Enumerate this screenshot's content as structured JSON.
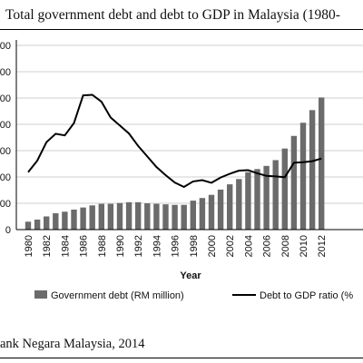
{
  "header": {
    "title": "Total government debt and debt to GDP in Malaysia (1980-"
  },
  "footer": {
    "source": "ank Negara Malaysia, 2014"
  },
  "chart_data": {
    "type": "bar+line",
    "title": "Total government debt and debt to GDP in Malaysia (1980-",
    "xlabel": "Year",
    "x": [
      1980,
      1981,
      1982,
      1983,
      1984,
      1985,
      1986,
      1987,
      1988,
      1989,
      1990,
      1991,
      1992,
      1993,
      1994,
      1995,
      1996,
      1997,
      1998,
      1999,
      2000,
      2001,
      2002,
      2003,
      2004,
      2005,
      2006,
      2007,
      2008,
      2009,
      2010,
      2011,
      2012
    ],
    "x_tick_labels": [
      "1980",
      "1982",
      "1984",
      "1986",
      "1988",
      "1990",
      "1992",
      "1994",
      "1996",
      "1998",
      "2000",
      "2002",
      "2004",
      "2006",
      "2008",
      "2010",
      "2012"
    ],
    "y_left_tick_labels": [
      "0",
      "00",
      "00",
      "00",
      "00",
      "00",
      "00",
      "00"
    ],
    "y_left_ticks": [
      0,
      1,
      2,
      3,
      4,
      5,
      6,
      7
    ],
    "legend_position": "bottom",
    "series": [
      {
        "name": "Government debt (RM million)",
        "type": "bar",
        "color": "#6b6b6b",
        "values": [
          0.3,
          0.38,
          0.5,
          0.62,
          0.68,
          0.76,
          0.84,
          0.92,
          0.98,
          0.98,
          1.01,
          1.04,
          1.04,
          1.0,
          0.98,
          0.96,
          0.94,
          0.94,
          1.1,
          1.2,
          1.32,
          1.52,
          1.72,
          1.92,
          2.18,
          2.3,
          2.42,
          2.64,
          3.08,
          3.56,
          4.06,
          4.54,
          5.02
        ]
      },
      {
        "name": "Debt to GDP ratio (%",
        "type": "line",
        "color": "#000000",
        "values": [
          2.18,
          2.62,
          3.32,
          3.64,
          3.58,
          4.05,
          5.1,
          5.12,
          4.86,
          4.26,
          3.96,
          3.65,
          3.18,
          2.78,
          2.38,
          2.07,
          1.79,
          1.62,
          1.83,
          1.88,
          1.78,
          1.98,
          2.12,
          2.24,
          2.26,
          2.14,
          2.04,
          2.02,
          1.99,
          2.54,
          2.56,
          2.6,
          2.7
        ]
      }
    ]
  }
}
